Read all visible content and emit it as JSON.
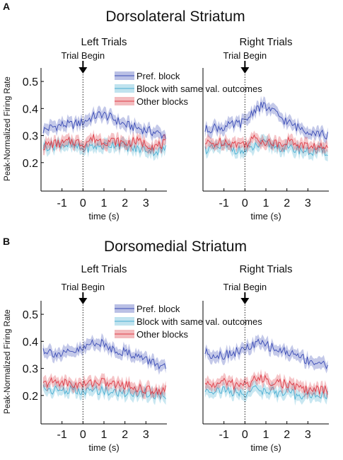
{
  "chart_data": [
    {
      "type": "line",
      "panel_letter": "A",
      "region": "Dorsolateral Striatum",
      "side": "Left Trials",
      "marker": "Trial Begin",
      "ylabel": "Peak-Normalized Firing Rate",
      "xlabel": "time (s)",
      "xlim": [
        -2,
        4
      ],
      "ylim": [
        0.1,
        0.55
      ],
      "xticks": [
        "-1",
        "0",
        "1",
        "2",
        "3"
      ],
      "yticks": [
        "0.2",
        "0.3",
        "0.4",
        "0.5"
      ],
      "legend": "top-right",
      "x": [
        -1.9,
        -1.5,
        -1.0,
        -0.5,
        0.0,
        0.5,
        0.9,
        1.5,
        2.0,
        2.5,
        3.0,
        3.5,
        3.9
      ],
      "series": [
        {
          "name": "Pref. block",
          "color": "#3a4bb5",
          "values": [
            0.32,
            0.33,
            0.34,
            0.34,
            0.35,
            0.37,
            0.38,
            0.36,
            0.34,
            0.33,
            0.32,
            0.31,
            0.3
          ],
          "err": 0.02
        },
        {
          "name": "Block with same val. outcomes",
          "color": "#4aaed2",
          "values": [
            0.26,
            0.26,
            0.27,
            0.26,
            0.25,
            0.26,
            0.26,
            0.27,
            0.26,
            0.25,
            0.25,
            0.24,
            0.25
          ],
          "err": 0.02
        },
        {
          "name": "Other blocks",
          "color": "#dd3b46",
          "values": [
            0.26,
            0.27,
            0.27,
            0.28,
            0.27,
            0.29,
            0.28,
            0.28,
            0.27,
            0.28,
            0.27,
            0.26,
            0.27
          ],
          "err": 0.02
        }
      ]
    },
    {
      "type": "line",
      "region": "Dorsolateral Striatum",
      "side": "Right Trials",
      "marker": "Trial Begin",
      "xlabel": "time (s)",
      "xlim": [
        -2,
        4
      ],
      "ylim": [
        0.1,
        0.55
      ],
      "xticks": [
        "-1",
        "0",
        "1",
        "2",
        "3"
      ],
      "x": [
        -1.9,
        -1.5,
        -1.0,
        -0.5,
        0.0,
        0.5,
        0.9,
        1.5,
        2.0,
        2.5,
        3.0,
        3.5,
        3.9
      ],
      "series": [
        {
          "name": "Pref. block",
          "color": "#3a4bb5",
          "values": [
            0.32,
            0.33,
            0.33,
            0.34,
            0.35,
            0.4,
            0.41,
            0.38,
            0.35,
            0.33,
            0.32,
            0.31,
            0.3
          ],
          "err": 0.02
        },
        {
          "name": "Block with same val. outcomes",
          "color": "#4aaed2",
          "values": [
            0.25,
            0.25,
            0.26,
            0.25,
            0.24,
            0.26,
            0.27,
            0.26,
            0.25,
            0.25,
            0.24,
            0.24,
            0.24
          ],
          "err": 0.02
        },
        {
          "name": "Other blocks",
          "color": "#dd3b46",
          "values": [
            0.27,
            0.27,
            0.28,
            0.27,
            0.27,
            0.29,
            0.28,
            0.27,
            0.28,
            0.27,
            0.26,
            0.26,
            0.25
          ],
          "err": 0.02
        }
      ]
    },
    {
      "type": "line",
      "panel_letter": "B",
      "region": "Dorsomedial Striatum",
      "side": "Left Trials",
      "marker": "Trial Begin",
      "ylabel": "Peak-Normalized Firing Rate",
      "xlabel": "time (s)",
      "xlim": [
        -2,
        4
      ],
      "ylim": [
        0.1,
        0.55
      ],
      "xticks": [
        "-1",
        "0",
        "1",
        "2",
        "3"
      ],
      "yticks": [
        "0.2",
        "0.3",
        "0.4",
        "0.5"
      ],
      "legend": "top-right",
      "x": [
        -1.9,
        -1.5,
        -1.0,
        -0.5,
        0.0,
        0.5,
        0.9,
        1.5,
        2.0,
        2.5,
        3.0,
        3.5,
        3.9
      ],
      "series": [
        {
          "name": "Pref. block",
          "color": "#3a4bb5",
          "values": [
            0.37,
            0.36,
            0.35,
            0.36,
            0.37,
            0.4,
            0.39,
            0.37,
            0.36,
            0.35,
            0.33,
            0.32,
            0.3
          ],
          "err": 0.02
        },
        {
          "name": "Block with same val. outcomes",
          "color": "#4aaed2",
          "values": [
            0.23,
            0.22,
            0.22,
            0.22,
            0.21,
            0.22,
            0.22,
            0.21,
            0.21,
            0.21,
            0.21,
            0.2,
            0.2
          ],
          "err": 0.02
        },
        {
          "name": "Other blocks",
          "color": "#dd3b46",
          "values": [
            0.24,
            0.25,
            0.25,
            0.24,
            0.24,
            0.25,
            0.25,
            0.24,
            0.24,
            0.23,
            0.22,
            0.22,
            0.22
          ],
          "err": 0.02
        }
      ]
    },
    {
      "type": "line",
      "region": "Dorsomedial Striatum",
      "side": "Right Trials",
      "marker": "Trial Begin",
      "xlabel": "time (s)",
      "xlim": [
        -2,
        4
      ],
      "ylim": [
        0.1,
        0.55
      ],
      "xticks": [
        "-1",
        "0",
        "1",
        "2",
        "3"
      ],
      "x": [
        -1.9,
        -1.5,
        -1.0,
        -0.5,
        0.0,
        0.5,
        0.9,
        1.5,
        2.0,
        2.5,
        3.0,
        3.5,
        3.9
      ],
      "series": [
        {
          "name": "Pref. block",
          "color": "#3a4bb5",
          "values": [
            0.36,
            0.35,
            0.35,
            0.36,
            0.37,
            0.39,
            0.39,
            0.37,
            0.36,
            0.35,
            0.33,
            0.32,
            0.31
          ],
          "err": 0.02
        },
        {
          "name": "Block with same val. outcomes",
          "color": "#4aaed2",
          "values": [
            0.22,
            0.22,
            0.22,
            0.21,
            0.21,
            0.22,
            0.22,
            0.21,
            0.21,
            0.2,
            0.2,
            0.2,
            0.2
          ],
          "err": 0.02
        },
        {
          "name": "Other blocks",
          "color": "#dd3b46",
          "values": [
            0.24,
            0.24,
            0.25,
            0.24,
            0.24,
            0.26,
            0.26,
            0.25,
            0.24,
            0.23,
            0.22,
            0.22,
            0.22
          ],
          "err": 0.02
        }
      ]
    }
  ]
}
